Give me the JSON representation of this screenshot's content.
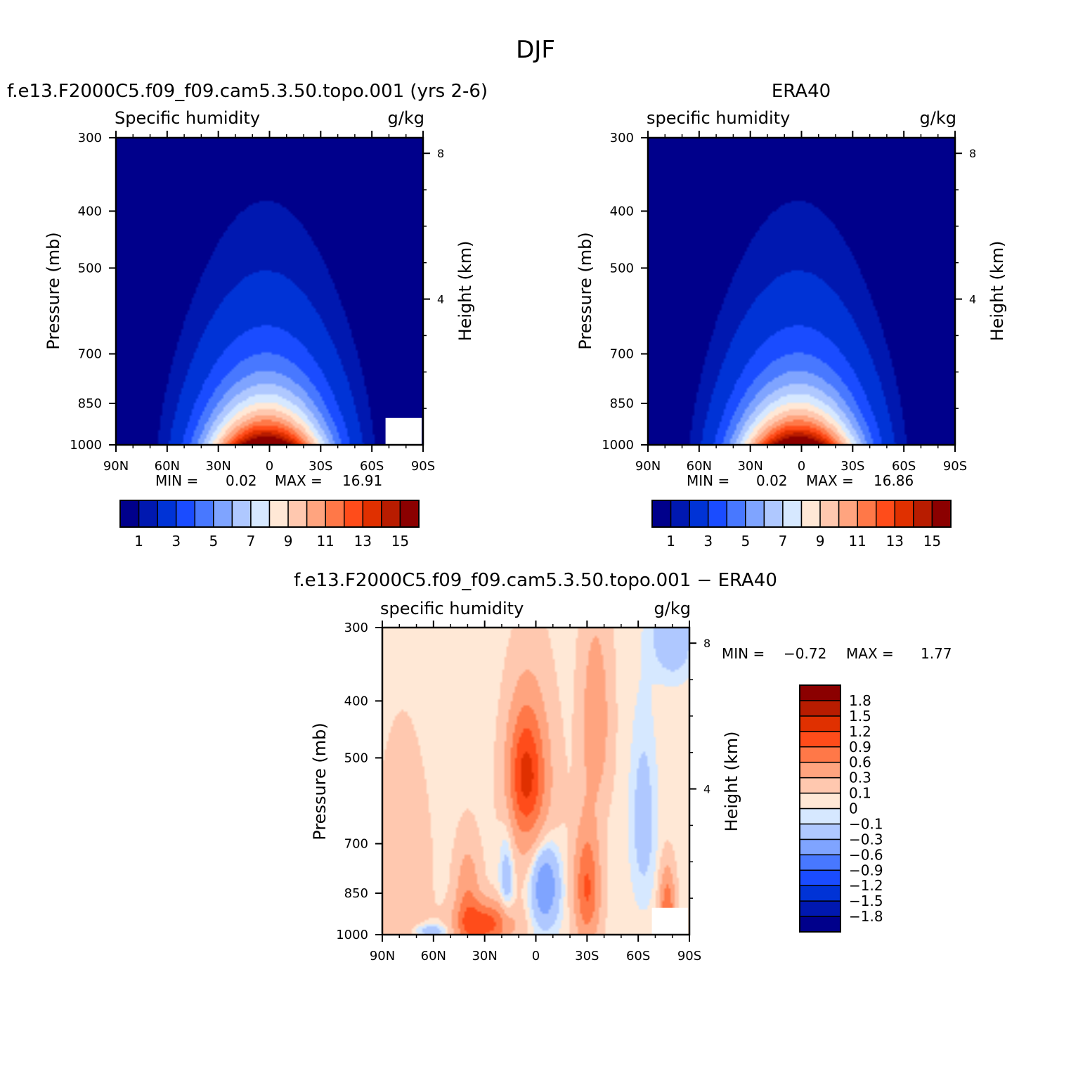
{
  "figure_title": "DJF",
  "chart_data": [
    {
      "type": "heatmap",
      "panel": "model",
      "title": "f.e13.F2000C5.f09_f09.cam5.3.50.topo.001 (yrs 2-6)",
      "subtitle_left": "Specific humidity",
      "subtitle_right": "g/kg",
      "ylabel": "Pressure (mb)",
      "y2label": "Height (km)",
      "x_ticks": [
        "90N",
        "60N",
        "30N",
        "0",
        "30S",
        "60S",
        "90S"
      ],
      "y_ticks": [
        "300",
        "400",
        "500",
        "700",
        "850",
        "1000"
      ],
      "y2_ticks": [
        "8",
        "4"
      ],
      "xlim": [
        90,
        -90
      ],
      "ylim": [
        1000,
        300
      ],
      "contour_levels": [
        0.5,
        1,
        2,
        3,
        4,
        5,
        6,
        7,
        8,
        9,
        10,
        11,
        12,
        13,
        14,
        15
      ],
      "peak_latitude": 2,
      "peak_value": 16.9,
      "stats": {
        "min_label": "MIN =",
        "min": "0.02",
        "max_label": "MAX =",
        "max": "16.91"
      },
      "colorbar": {
        "colors": [
          "#00008b",
          "#0018b0",
          "#0033d6",
          "#1a4cff",
          "#4878ff",
          "#7fa4ff",
          "#afc8ff",
          "#d6e8ff",
          "#ffe8d6",
          "#ffc8af",
          "#ffa47f",
          "#ff7848",
          "#ff4c1a",
          "#e03000",
          "#b81c00",
          "#8b0000"
        ],
        "labels": [
          "1",
          "3",
          "5",
          "7",
          "9",
          "11",
          "13",
          "15"
        ]
      }
    },
    {
      "type": "heatmap",
      "panel": "obs",
      "title": "ERA40",
      "subtitle_left": "specific humidity",
      "subtitle_right": "g/kg",
      "ylabel": "Pressure (mb)",
      "y2label": "Height (km)",
      "x_ticks": [
        "90N",
        "60N",
        "30N",
        "0",
        "30S",
        "60S",
        "90S"
      ],
      "y_ticks": [
        "300",
        "400",
        "500",
        "700",
        "850",
        "1000"
      ],
      "y2_ticks": [
        "8",
        "4"
      ],
      "xlim": [
        90,
        -90
      ],
      "ylim": [
        1000,
        300
      ],
      "contour_levels": [
        0.5,
        1,
        2,
        3,
        4,
        5,
        6,
        7,
        8,
        9,
        10,
        11,
        12,
        13,
        14,
        15
      ],
      "peak_latitude": 2,
      "peak_value": 16.9,
      "stats": {
        "min_label": "MIN =",
        "min": "0.02",
        "max_label": "MAX =",
        "max": "16.86"
      },
      "colorbar": {
        "colors": [
          "#00008b",
          "#0018b0",
          "#0033d6",
          "#1a4cff",
          "#4878ff",
          "#7fa4ff",
          "#afc8ff",
          "#d6e8ff",
          "#ffe8d6",
          "#ffc8af",
          "#ffa47f",
          "#ff7848",
          "#ff4c1a",
          "#e03000",
          "#b81c00",
          "#8b0000"
        ],
        "labels": [
          "1",
          "3",
          "5",
          "7",
          "9",
          "11",
          "13",
          "15"
        ]
      }
    },
    {
      "type": "heatmap",
      "panel": "difference",
      "title": "f.e13.F2000C5.f09_f09.cam5.3.50.topo.001 − ERA40",
      "subtitle_left": "specific humidity",
      "subtitle_right": "g/kg",
      "ylabel": "Pressure (mb)",
      "y2label": "Height (km)",
      "x_ticks": [
        "90N",
        "60N",
        "30N",
        "0",
        "30S",
        "60S",
        "90S"
      ],
      "y_ticks": [
        "300",
        "400",
        "500",
        "700",
        "850",
        "1000"
      ],
      "y2_ticks": [
        "8",
        "4"
      ],
      "xlim": [
        90,
        -90
      ],
      "ylim": [
        1000,
        300
      ],
      "contour_levels": [
        -1.8,
        -1.5,
        -1.2,
        -0.9,
        -0.6,
        -0.3,
        -0.1,
        0,
        0.1,
        0.3,
        0.6,
        0.9,
        1.2,
        1.5,
        1.8
      ],
      "anomalies": [
        {
          "lat": 6,
          "p": 530,
          "amp": 1.0,
          "slat": 7,
          "sp": 90
        },
        {
          "lat": 2,
          "p": 600,
          "amp": 0.35,
          "slat": 10,
          "sp": 160
        },
        {
          "lat": -35,
          "p": 430,
          "amp": 0.45,
          "slat": 6,
          "sp": 110
        },
        {
          "lat": -30,
          "p": 830,
          "amp": 0.9,
          "slat": 5,
          "sp": 130
        },
        {
          "lat": 30,
          "p": 960,
          "amp": 1.0,
          "slat": 11,
          "sp": 55
        },
        {
          "lat": 40,
          "p": 870,
          "amp": 0.5,
          "slat": 5,
          "sp": 120
        },
        {
          "lat": -5,
          "p": 820,
          "amp": -0.65,
          "slat": 6,
          "sp": 100
        },
        {
          "lat": 17,
          "p": 800,
          "amp": -0.3,
          "slat": 3,
          "sp": 120
        },
        {
          "lat": -63,
          "p": 640,
          "amp": -0.25,
          "slat": 5,
          "sp": 150
        },
        {
          "lat": 62,
          "p": 985,
          "amp": -0.3,
          "slat": 8,
          "sp": 20
        },
        {
          "lat": -77,
          "p": 900,
          "amp": 0.8,
          "slat": 3,
          "sp": 90
        },
        {
          "lat": 78,
          "p": 810,
          "amp": 0.25,
          "slat": 10,
          "sp": 220
        },
        {
          "lat": -80,
          "p": 310,
          "amp": -0.35,
          "slat": 8,
          "sp": 35
        }
      ],
      "stats": {
        "min_label": "MIN =",
        "min": "−0.72",
        "max_label": "MAX =",
        "max": "1.77"
      },
      "colorbar": {
        "colors": [
          "#00008b",
          "#0018b0",
          "#0033d6",
          "#1a4cff",
          "#4878ff",
          "#7fa4ff",
          "#afc8ff",
          "#d6e8ff",
          "#ffe8d6",
          "#ffc8af",
          "#ffa47f",
          "#ff7848",
          "#ff4c1a",
          "#e03000",
          "#b81c00",
          "#8b0000"
        ],
        "labels": [
          "−1.8",
          "−1.5",
          "−1.2",
          "−0.9",
          "−0.6",
          "−0.3",
          "−0.1",
          "0",
          "0.1",
          "0.3",
          "0.6",
          "0.9",
          "1.2",
          "1.5",
          "1.8"
        ]
      }
    }
  ]
}
